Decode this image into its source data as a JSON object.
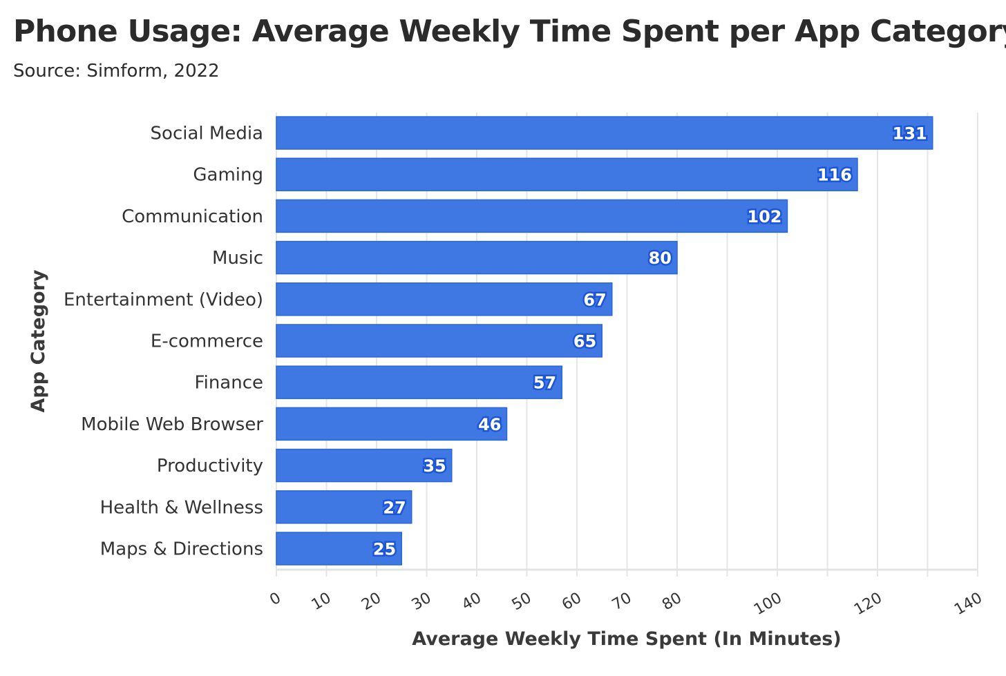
{
  "chart_data": {
    "type": "bar",
    "orientation": "horizontal",
    "title": "Phone Usage: Average Weekly Time Spent per App Category",
    "subtitle": "Source: Simform, 2022",
    "xlabel": "Average Weekly Time Spent (In Minutes)",
    "ylabel": "App Category",
    "categories": [
      "Social Media",
      "Gaming",
      "Communication",
      "Music",
      "Entertainment (Video)",
      "E-commerce",
      "Finance",
      "Mobile Web Browser",
      "Productivity",
      "Health & Wellness",
      "Maps & Directions"
    ],
    "values": [
      131,
      116,
      102,
      80,
      67,
      65,
      57,
      46,
      35,
      27,
      25
    ],
    "xlim": [
      0,
      140
    ],
    "xticks": [
      0,
      10,
      20,
      30,
      40,
      50,
      60,
      70,
      80,
      100,
      120,
      140
    ],
    "gridlines": [
      0,
      10,
      20,
      30,
      40,
      50,
      60,
      70,
      80,
      90,
      100,
      110,
      120,
      130,
      140
    ],
    "grid": true,
    "data_labels": true,
    "colors": {
      "bar": "#3f78e3",
      "bar_border": "#2a66dd",
      "grid": "#e6e6e6"
    }
  }
}
